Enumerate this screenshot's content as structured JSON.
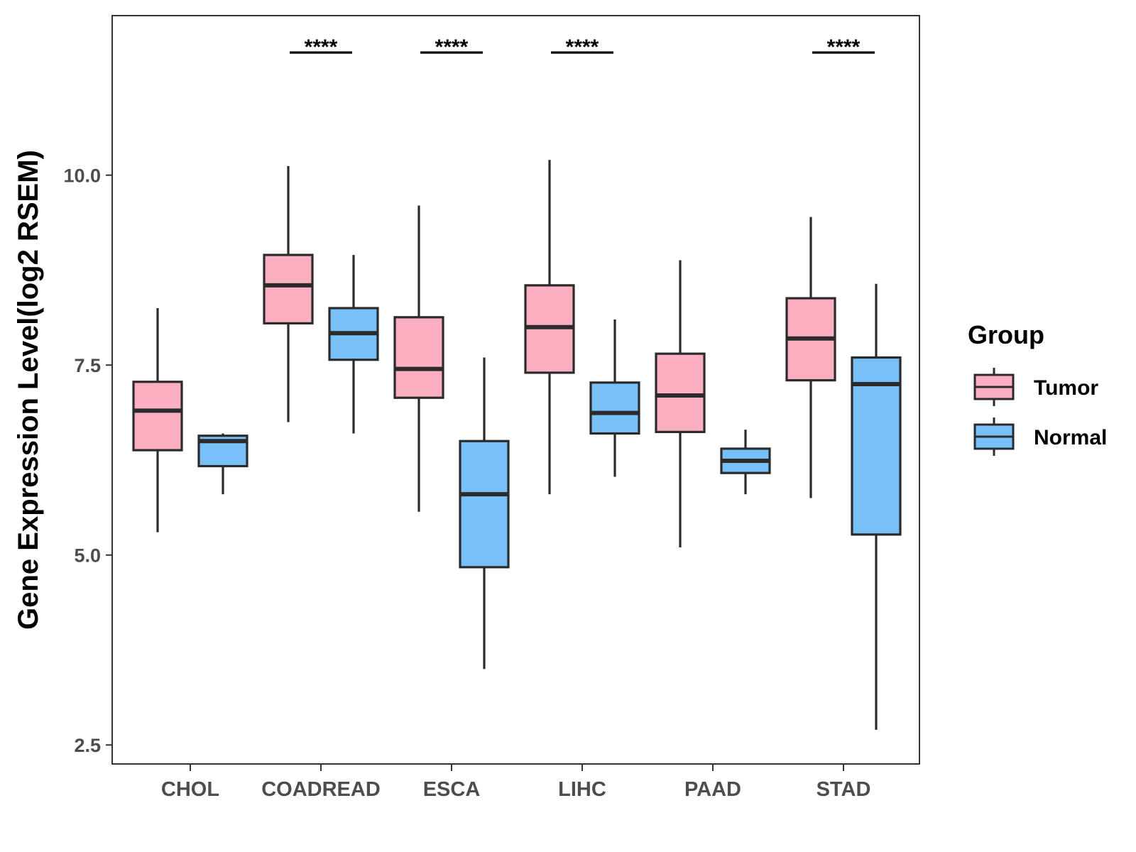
{
  "chart_data": {
    "type": "boxplot",
    "title": "",
    "xlabel": "",
    "ylabel": "Gene Expression Level(log2 RSEM)",
    "ylim": [
      2.25,
      12.1
    ],
    "yticks": [
      2.5,
      5.0,
      7.5,
      10.0
    ],
    "ytick_labels": [
      "2.5",
      "5.0",
      "7.5",
      "10.0"
    ],
    "categories": [
      "CHOL",
      "COADREAD",
      "ESCA",
      "LIHC",
      "PAAD",
      "STAD"
    ],
    "legend": {
      "title": "Group",
      "position": "right",
      "entries": [
        {
          "name": "Tumor",
          "color": "#fbafc1"
        },
        {
          "name": "Normal",
          "color": "#78c1f8"
        }
      ]
    },
    "series": [
      {
        "name": "Tumor",
        "color": "#fbafc1",
        "boxes": [
          {
            "category": "CHOL",
            "min": 5.3,
            "q1": 6.38,
            "median": 6.9,
            "q3": 7.28,
            "max": 8.25
          },
          {
            "category": "COADREAD",
            "min": 6.75,
            "q1": 8.05,
            "median": 8.55,
            "q3": 8.95,
            "max": 10.12
          },
          {
            "category": "ESCA",
            "min": 5.57,
            "q1": 7.07,
            "median": 7.45,
            "q3": 8.13,
            "max": 9.6
          },
          {
            "category": "LIHC",
            "min": 5.8,
            "q1": 7.4,
            "median": 8.0,
            "q3": 8.55,
            "max": 10.2
          },
          {
            "category": "PAAD",
            "min": 5.1,
            "q1": 6.62,
            "median": 7.1,
            "q3": 7.65,
            "max": 8.88
          },
          {
            "category": "STAD",
            "min": 5.75,
            "q1": 7.3,
            "median": 7.85,
            "q3": 8.38,
            "max": 9.45
          }
        ]
      },
      {
        "name": "Normal",
        "color": "#78c1f8",
        "boxes": [
          {
            "category": "CHOL",
            "min": 5.8,
            "q1": 6.17,
            "median": 6.5,
            "q3": 6.57,
            "max": 6.6
          },
          {
            "category": "COADREAD",
            "min": 6.6,
            "q1": 7.57,
            "median": 7.92,
            "q3": 8.25,
            "max": 8.95
          },
          {
            "category": "ESCA",
            "min": 3.5,
            "q1": 4.84,
            "median": 5.8,
            "q3": 6.5,
            "max": 7.6
          },
          {
            "category": "LIHC",
            "min": 6.03,
            "q1": 6.6,
            "median": 6.87,
            "q3": 7.27,
            "max": 8.1
          },
          {
            "category": "PAAD",
            "min": 5.8,
            "q1": 6.08,
            "median": 6.24,
            "q3": 6.4,
            "max": 6.65
          },
          {
            "category": "STAD",
            "min": 2.7,
            "q1": 5.27,
            "median": 7.25,
            "q3": 7.6,
            "max": 8.57
          }
        ]
      }
    ],
    "significance": [
      {
        "category": "CHOL",
        "label": ""
      },
      {
        "category": "COADREAD",
        "label": "****"
      },
      {
        "category": "ESCA",
        "label": "****"
      },
      {
        "category": "LIHC",
        "label": "****"
      },
      {
        "category": "PAAD",
        "label": ""
      },
      {
        "category": "STAD",
        "label": "****"
      }
    ]
  }
}
